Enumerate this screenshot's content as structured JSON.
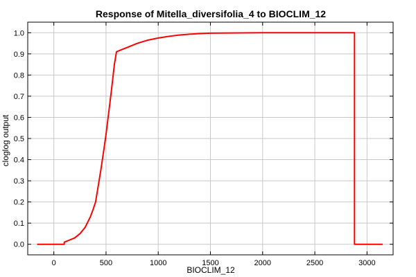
{
  "chart_data": {
    "type": "line",
    "title": "Response of Mitella_diversifolia_4 to BIOCLIM_12",
    "xlabel": "BIOCLIM_12",
    "ylabel": "cloglog output",
    "xlim": [
      -250,
      3250
    ],
    "ylim": [
      -0.05,
      1.05
    ],
    "xticks": [
      0,
      500,
      1000,
      1500,
      2000,
      2500,
      3000
    ],
    "yticks": [
      0.0,
      0.1,
      0.2,
      0.3,
      0.4,
      0.5,
      0.6,
      0.7,
      0.8,
      0.9,
      1.0
    ],
    "xtick_labels": [
      "0",
      "500",
      "1000",
      "1500",
      "2000",
      "2500",
      "3000"
    ],
    "ytick_labels": [
      "0.0",
      "0.1",
      "0.2",
      "0.3",
      "0.4",
      "0.5",
      "0.6",
      "0.7",
      "0.8",
      "0.9",
      "1.0"
    ],
    "grid": true,
    "series": [
      {
        "color": "#ff0000",
        "x": [
          -160,
          100,
          100,
          150,
          200,
          250,
          300,
          350,
          380,
          400,
          420,
          450,
          480,
          500,
          520,
          550,
          580,
          600,
          650,
          700,
          800,
          900,
          1000,
          1100,
          1200,
          1300,
          1400,
          1500,
          2000,
          2500,
          2880,
          2880,
          3150
        ],
        "y": [
          0.0,
          0.0,
          0.01,
          0.02,
          0.03,
          0.05,
          0.08,
          0.13,
          0.17,
          0.2,
          0.26,
          0.35,
          0.45,
          0.52,
          0.6,
          0.72,
          0.85,
          0.91,
          0.92,
          0.93,
          0.95,
          0.965,
          0.975,
          0.983,
          0.989,
          0.993,
          0.996,
          0.998,
          1.0,
          1.0,
          1.0,
          0.0,
          0.0
        ]
      }
    ]
  }
}
